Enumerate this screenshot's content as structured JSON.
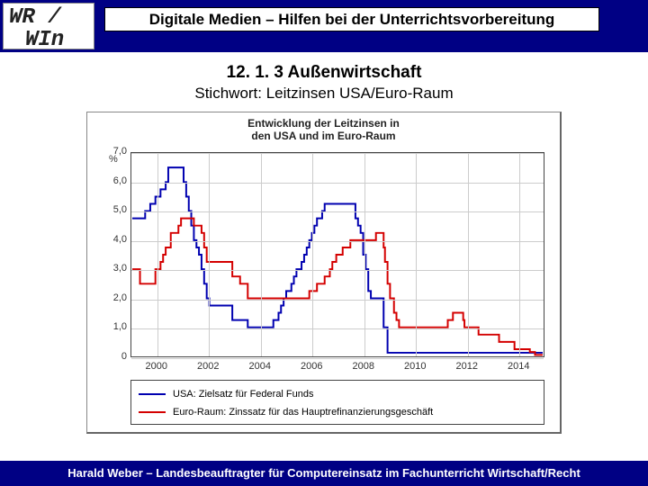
{
  "logo": {
    "line1": "WR /",
    "line2": "WIn"
  },
  "header_title": "Digitale Medien – Hilfen bei der Unterrichtsvorbereitung",
  "subheading1": "12. 1. 3 Außenwirtschaft",
  "subheading2": "Stichwort: Leitzinsen USA/Euro-Raum",
  "footer": "Harald Weber – Landesbeauftragter für Computereinsatz im Fachunterricht Wirtschaft/Recht",
  "chart": {
    "type": "line-step",
    "title_line1": "Entwicklung der Leitzinsen in",
    "title_line2": "den USA und im Euro-Raum",
    "y_unit": "%",
    "ylim": [
      0,
      7
    ],
    "yticks": [
      0,
      1.0,
      2.0,
      3.0,
      4.0,
      5.0,
      6.0,
      7.0
    ],
    "ytick_labels": [
      "0",
      "1,0",
      "2,0",
      "3,0",
      "4,0",
      "5,0",
      "6,0",
      "7,0"
    ],
    "xlim": [
      1999,
      2015
    ],
    "xticks": [
      2000,
      2002,
      2004,
      2006,
      2008,
      2010,
      2012,
      2014
    ],
    "grid_color": "#cccccc",
    "border_color": "#444444",
    "background_color": "#ffffff",
    "line_width": 2,
    "series": [
      {
        "name": "usa",
        "color": "#0000b0",
        "legend": "USA: Zielsatz für Federal Funds",
        "points": [
          [
            1999.0,
            4.75
          ],
          [
            1999.5,
            5.0
          ],
          [
            1999.7,
            5.25
          ],
          [
            1999.9,
            5.5
          ],
          [
            2000.1,
            5.75
          ],
          [
            2000.3,
            6.0
          ],
          [
            2000.4,
            6.5
          ],
          [
            2001.0,
            6.0
          ],
          [
            2001.1,
            5.5
          ],
          [
            2001.2,
            5.0
          ],
          [
            2001.3,
            4.5
          ],
          [
            2001.4,
            4.0
          ],
          [
            2001.5,
            3.75
          ],
          [
            2001.6,
            3.5
          ],
          [
            2001.7,
            3.0
          ],
          [
            2001.8,
            2.5
          ],
          [
            2001.9,
            2.0
          ],
          [
            2002.0,
            1.75
          ],
          [
            2002.9,
            1.25
          ],
          [
            2003.5,
            1.0
          ],
          [
            2004.5,
            1.25
          ],
          [
            2004.7,
            1.5
          ],
          [
            2004.8,
            1.75
          ],
          [
            2004.9,
            2.0
          ],
          [
            2005.0,
            2.25
          ],
          [
            2005.2,
            2.5
          ],
          [
            2005.3,
            2.75
          ],
          [
            2005.4,
            3.0
          ],
          [
            2005.6,
            3.25
          ],
          [
            2005.7,
            3.5
          ],
          [
            2005.8,
            3.75
          ],
          [
            2005.9,
            4.0
          ],
          [
            2006.0,
            4.25
          ],
          [
            2006.1,
            4.5
          ],
          [
            2006.2,
            4.75
          ],
          [
            2006.4,
            5.0
          ],
          [
            2006.5,
            5.25
          ],
          [
            2007.7,
            4.75
          ],
          [
            2007.8,
            4.5
          ],
          [
            2007.9,
            4.25
          ],
          [
            2008.0,
            3.5
          ],
          [
            2008.1,
            3.0
          ],
          [
            2008.2,
            2.25
          ],
          [
            2008.3,
            2.0
          ],
          [
            2008.8,
            1.0
          ],
          [
            2008.95,
            0.125
          ],
          [
            2015.0,
            0.125
          ]
        ]
      },
      {
        "name": "euro",
        "color": "#d40000",
        "legend": "Euro-Raum: Zinssatz für das Hauptrefinanzierungsgeschäft",
        "points": [
          [
            1999.0,
            3.0
          ],
          [
            1999.3,
            2.5
          ],
          [
            1999.9,
            3.0
          ],
          [
            2000.1,
            3.25
          ],
          [
            2000.2,
            3.5
          ],
          [
            2000.3,
            3.75
          ],
          [
            2000.5,
            4.25
          ],
          [
            2000.8,
            4.5
          ],
          [
            2000.9,
            4.75
          ],
          [
            2001.4,
            4.5
          ],
          [
            2001.7,
            4.25
          ],
          [
            2001.8,
            3.75
          ],
          [
            2001.9,
            3.25
          ],
          [
            2002.9,
            2.75
          ],
          [
            2003.2,
            2.5
          ],
          [
            2003.5,
            2.0
          ],
          [
            2005.9,
            2.25
          ],
          [
            2006.2,
            2.5
          ],
          [
            2006.5,
            2.75
          ],
          [
            2006.7,
            3.0
          ],
          [
            2006.8,
            3.25
          ],
          [
            2006.95,
            3.5
          ],
          [
            2007.2,
            3.75
          ],
          [
            2007.5,
            4.0
          ],
          [
            2008.5,
            4.25
          ],
          [
            2008.8,
            3.75
          ],
          [
            2008.85,
            3.25
          ],
          [
            2008.95,
            2.5
          ],
          [
            2009.05,
            2.0
          ],
          [
            2009.2,
            1.5
          ],
          [
            2009.3,
            1.25
          ],
          [
            2009.4,
            1.0
          ],
          [
            2011.3,
            1.25
          ],
          [
            2011.5,
            1.5
          ],
          [
            2011.9,
            1.25
          ],
          [
            2011.95,
            1.0
          ],
          [
            2012.5,
            0.75
          ],
          [
            2013.3,
            0.5
          ],
          [
            2013.9,
            0.25
          ],
          [
            2014.5,
            0.15
          ],
          [
            2014.7,
            0.05
          ],
          [
            2015.0,
            0.05
          ]
        ]
      }
    ]
  }
}
